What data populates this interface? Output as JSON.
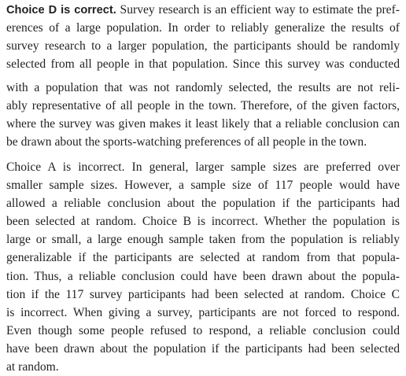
{
  "explanation": {
    "lead": "Choice D is correct.",
    "paragraph1_lines": [
      " Survey research is an efficient way to estimate the pref-",
      "erences of a large population. In order to reliably generalize the results of",
      "survey research to a larger population, the participants should be randomly",
      "selected from all people in that population. Since this survey was conducted"
    ],
    "paragraph2_lines": [
      "with a population that was not randomly selected, the results are not reli-",
      "ably representative of all people in the town. Therefore, of the given factors,",
      "where the survey was given makes it least likely that a reliable conclusion can",
      "be drawn about the sports-watching preferences of all people in the town."
    ],
    "paragraph3_lines": [
      "Choice A is incorrect. In general, larger sample sizes are preferred over",
      "smaller sample sizes. However, a sample size of 117 people would have",
      "allowed a reliable conclusion about the population if the participants had",
      "been selected at random. Choice B is incorrect. Whether the population is",
      "large or small, a large enough sample taken from the population is reliably",
      "generalizable if the participants are selected at random from that popula-",
      "tion. Thus, a reliable conclusion could have been drawn about the popula-",
      "tion if the 117 survey participants had been selected at random. Choice C",
      "is incorrect. When giving a survey, participants are not forced to respond.",
      "Even though some people refused to respond, a reliable conclusion could",
      "have been drawn about the population if the participants had been selected",
      "at random."
    ]
  }
}
